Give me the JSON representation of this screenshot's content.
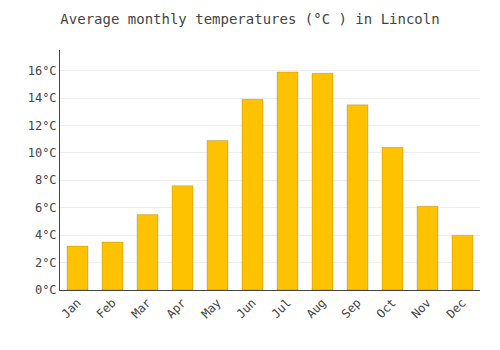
{
  "chart_data": {
    "type": "bar",
    "title": "Average monthly temperatures (°C ) in Lincoln",
    "categories": [
      "Jan",
      "Feb",
      "Mar",
      "Apr",
      "May",
      "Jun",
      "Jul",
      "Aug",
      "Sep",
      "Oct",
      "Nov",
      "Dec"
    ],
    "values": [
      3.2,
      3.5,
      5.5,
      7.6,
      10.9,
      13.9,
      15.9,
      15.8,
      13.5,
      10.4,
      6.1,
      4.0
    ],
    "color": "#FFC200",
    "ylim": [
      0,
      17.5
    ],
    "yticks": [
      {
        "value": 0,
        "label": "0°C"
      },
      {
        "value": 2,
        "label": "2°C"
      },
      {
        "value": 4,
        "label": "4°C"
      },
      {
        "value": 6,
        "label": "6°C"
      },
      {
        "value": 8,
        "label": "8°C"
      },
      {
        "value": 10,
        "label": "10°C"
      },
      {
        "value": 12,
        "label": "12°C"
      },
      {
        "value": 14,
        "label": "14°C"
      },
      {
        "value": 16,
        "label": "16°C"
      }
    ],
    "grid": true
  }
}
